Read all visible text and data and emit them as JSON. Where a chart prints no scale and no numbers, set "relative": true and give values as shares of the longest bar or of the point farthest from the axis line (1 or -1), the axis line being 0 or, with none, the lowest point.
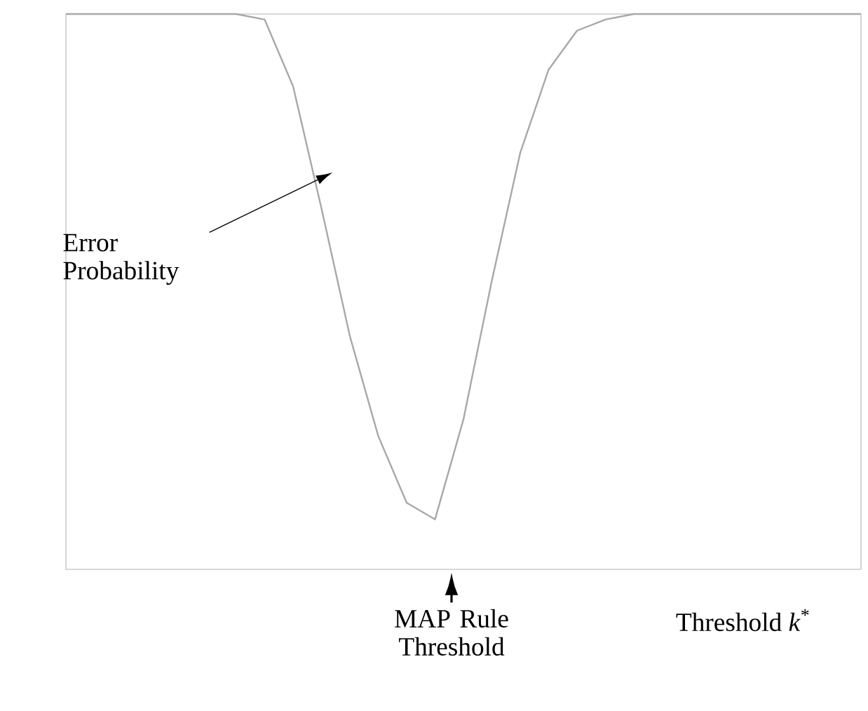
{
  "chart_data": {
    "type": "line",
    "relative": true,
    "tick_labels": false,
    "color": "#a8a8a8",
    "xlabel": "Threshold *k*$^{*}$",
    "categories": [
      null,
      null,
      null,
      null,
      null,
      null,
      null,
      null,
      null,
      null,
      null,
      null,
      null,
      null,
      null,
      null,
      null,
      null,
      null,
      null,
      null,
      null,
      null,
      null,
      null,
      null,
      null,
      null,
      null
    ],
    "values": [
      1.0,
      1.0,
      1.0,
      1.0,
      1.0,
      1.0,
      1.0,
      0.99,
      0.87,
      0.65,
      0.42,
      0.24,
      0.12,
      0.09,
      0.27,
      0.52,
      0.75,
      0.9,
      0.97,
      0.99,
      1.0,
      1.0,
      1.0,
      1.0,
      1.0,
      1.0,
      1.0,
      1.0,
      1.0
    ],
    "annotations": [
      "Error Probability",
      "MAP Rule Threshold"
    ]
  }
}
